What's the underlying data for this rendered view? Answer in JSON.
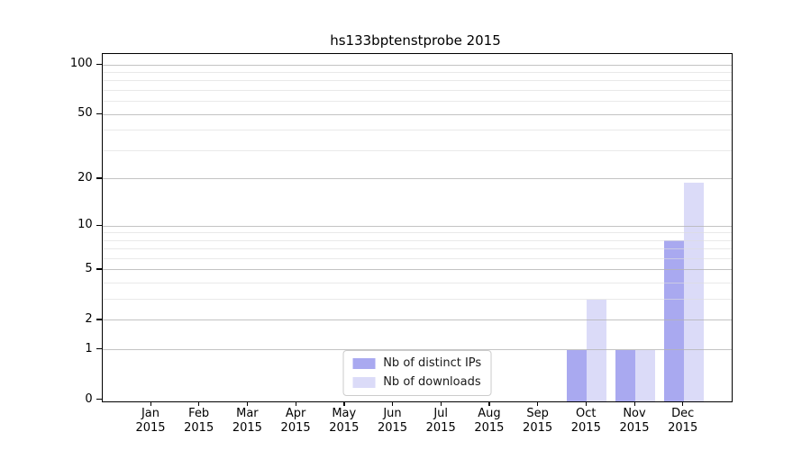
{
  "title": "hs133bptenstprobe 2015",
  "chart_data": {
    "type": "bar",
    "title": "hs133bptenstprobe 2015",
    "categories": [
      "Jan",
      "Feb",
      "Mar",
      "Apr",
      "May",
      "Jun",
      "Jul",
      "Aug",
      "Sep",
      "Oct",
      "Nov",
      "Dec"
    ],
    "x_year_label": "2015",
    "series": [
      {
        "name": "Nb of distinct IPs",
        "color": "#a9a9f0",
        "values": [
          0,
          0,
          0,
          0,
          0,
          0,
          0,
          0,
          0,
          1,
          1,
          8
        ]
      },
      {
        "name": "Nb of downloads",
        "color": "#dbdbf8",
        "values": [
          0,
          0,
          0,
          0,
          0,
          0,
          0,
          0,
          0,
          3,
          1,
          19
        ]
      }
    ],
    "xlabel": "",
    "ylabel": "",
    "yscale": "log1p",
    "ylim": [
      0,
      116
    ],
    "y_major_ticks": [
      0,
      1,
      2,
      5,
      10,
      20,
      50,
      100
    ],
    "y_tick_labels": [
      "0",
      "1",
      "2",
      "5",
      "10",
      "20",
      "50",
      "100"
    ],
    "y_minor_ticks": [
      3,
      4,
      6,
      7,
      8,
      9,
      30,
      40,
      60,
      70,
      80,
      90
    ],
    "grid": true,
    "legend_position": "lower center"
  },
  "colors": {
    "bar_distinct_ips": "#a9a9f0",
    "bar_downloads": "#dbdbf8",
    "grid_major": "#c4c4c4",
    "grid_minor": "#eeeeee",
    "axis_frame": "#000000",
    "legend_border": "#cccccc",
    "background": "#ffffff"
  }
}
